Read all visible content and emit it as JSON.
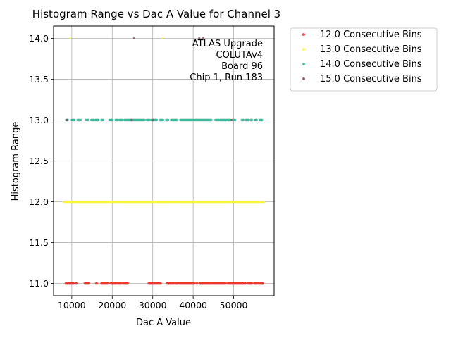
{
  "chart_data": {
    "type": "scatter",
    "title": "Histogram Range vs Dac A Value for Channel 3",
    "xlabel": "Dac A Value",
    "ylabel": "Histogram Range",
    "xlim": [
      5500,
      60000
    ],
    "ylim": [
      10.85,
      14.15
    ],
    "xticks": [
      10000,
      20000,
      30000,
      40000,
      50000
    ],
    "yticks": [
      11.0,
      11.5,
      12.0,
      12.5,
      13.0,
      13.5,
      14.0
    ],
    "grid": true,
    "legend_position": "outside-top-right",
    "annotation": [
      "ATLAS Upgrade",
      "COLUTAv4",
      "Board 96",
      "Chip 1, Run 183"
    ],
    "series": [
      {
        "name": "12.0 Consecutive Bins",
        "color": "#e8392b",
        "points": [
          {
            "y": 11.0,
            "x_ranges": [
              [
                8500,
                10500
              ],
              [
                11000,
                11200
              ],
              [
                13200,
                14300
              ],
              [
                16000,
                16200
              ],
              [
                17300,
                18900
              ],
              [
                19500,
                21000
              ],
              [
                21300,
                22200
              ],
              [
                22600,
                23900
              ],
              [
                29000,
                31000
              ],
              [
                31200,
                32000
              ],
              [
                33500,
                35200
              ],
              [
                35600,
                36300
              ],
              [
                36600,
                40300
              ],
              [
                40800,
                41000
              ],
              [
                41600,
                43900
              ],
              [
                44000,
                48000
              ],
              [
                48500,
                49200
              ],
              [
                49300,
                53000
              ],
              [
                53500,
                54500
              ],
              [
                55000,
                55600
              ],
              [
                56000,
                57200
              ]
            ]
          }
        ]
      },
      {
        "name": "13.0 Consecutive Bins",
        "color": "#f5f53a",
        "points": [
          {
            "y": 12.0,
            "x_ranges": [
              [
                8000,
                57500
              ]
            ]
          },
          {
            "y": 14.0,
            "x_values": [
              9500,
              32500
            ]
          }
        ]
      },
      {
        "name": "14.0 Consecutive Bins",
        "color": "#40b59a",
        "points": [
          {
            "y": 13.0,
            "x_ranges": [
              [
                8600,
                9000
              ],
              [
                10000,
                10600
              ],
              [
                11400,
                12200
              ],
              [
                13500,
                14000
              ],
              [
                14800,
                15400
              ],
              [
                15800,
                16600
              ],
              [
                17300,
                17800
              ],
              [
                19300,
                20100
              ],
              [
                20800,
                21200
              ],
              [
                21700,
                22500
              ],
              [
                23000,
                28000
              ],
              [
                28500,
                29200
              ],
              [
                29600,
                31000
              ],
              [
                31800,
                32600
              ],
              [
                33300,
                33800
              ],
              [
                34500,
                36000
              ],
              [
                36800,
                39000
              ],
              [
                39200,
                40000
              ],
              [
                40400,
                41000
              ],
              [
                41200,
                44500
              ],
              [
                45500,
                46300
              ],
              [
                46600,
                49200
              ],
              [
                50000,
                50400
              ],
              [
                52000,
                52400
              ],
              [
                53000,
                53700
              ],
              [
                54200,
                54500
              ],
              [
                55300,
                55700
              ],
              [
                56400,
                57000
              ]
            ]
          }
        ]
      },
      {
        "name": "15.0 Consecutive Bins",
        "color": "#8b4a5a",
        "points": [
          {
            "y": 13.0,
            "x_values": [
              8800,
              24800,
              30000,
              49500
            ]
          },
          {
            "y": 14.0,
            "x_values": [
              25400,
              41500,
              42500
            ]
          }
        ]
      }
    ]
  }
}
